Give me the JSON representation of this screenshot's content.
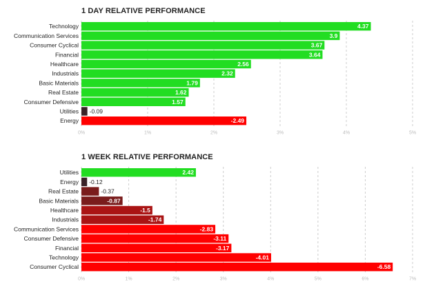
{
  "chart_data": [
    {
      "type": "bar",
      "orientation": "horizontal",
      "title": "1 DAY RELATIVE PERFORMANCE",
      "categories": [
        "Technology",
        "Communication Services",
        "Consumer Cyclical",
        "Financial",
        "Healthcare",
        "Industrials",
        "Basic Materials",
        "Real Estate",
        "Consumer Defensive",
        "Utilities",
        "Energy"
      ],
      "values": [
        4.37,
        3.9,
        3.67,
        3.64,
        2.56,
        2.32,
        1.79,
        1.62,
        1.57,
        -0.09,
        -2.49
      ],
      "value_labels": [
        "4.37",
        "3.9",
        "3.67",
        "3.64",
        "2.56",
        "2.32",
        "1.79",
        "1.62",
        "1.57",
        "-0.09",
        "-2.49"
      ],
      "xlim": [
        0,
        5
      ],
      "xticks": [
        "0%",
        "1%",
        "2%",
        "3%",
        "4%",
        "5%"
      ],
      "grid": true
    },
    {
      "type": "bar",
      "orientation": "horizontal",
      "title": "1 WEEK RELATIVE PERFORMANCE",
      "categories": [
        "Utilities",
        "Energy",
        "Real Estate",
        "Basic Materials",
        "Healthcare",
        "Industrials",
        "Communication Services",
        "Consumer Defensive",
        "Financial",
        "Technology",
        "Consumer Cyclical"
      ],
      "values": [
        2.42,
        -0.12,
        -0.37,
        -0.87,
        -1.5,
        -1.74,
        -2.83,
        -3.11,
        -3.17,
        -4.01,
        -6.58
      ],
      "value_labels": [
        "2.42",
        "-0.12",
        "-0.37",
        "-0.87",
        "-1.5",
        "-1.74",
        "-2.83",
        "-3.11",
        "-3.17",
        "-4.01",
        "-6.58"
      ],
      "xlim": [
        0,
        7
      ],
      "xticks": [
        "0%",
        "1%",
        "2%",
        "3%",
        "4%",
        "5%",
        "6%",
        "7%"
      ],
      "grid": true
    }
  ],
  "colors": {
    "positive": "#22dd22",
    "negative_strong": "#ff0000",
    "negative_dark": "#3a2228",
    "negative_mid": "#7a1c1c",
    "negative_deep": "#aa1414",
    "grid": "#cccccc",
    "axis_label": "#bbbbbb",
    "category_label": "#222222"
  }
}
